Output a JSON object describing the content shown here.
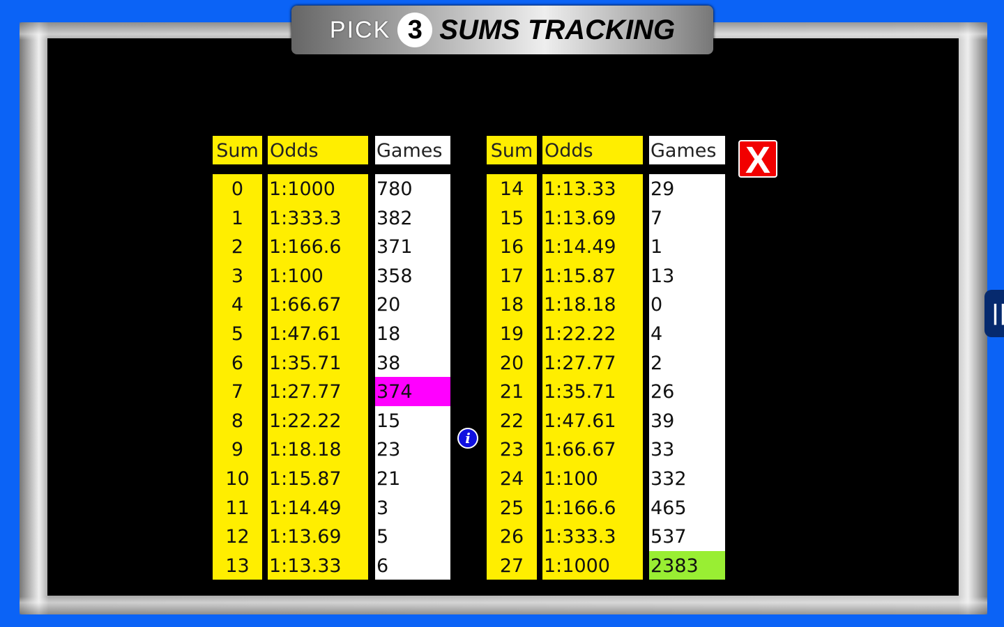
{
  "title": {
    "pick": "PICK",
    "number": "3",
    "rest": "SUMS TRACKING"
  },
  "headers": {
    "sum": "Sum",
    "odds": "Odds",
    "games": "Games"
  },
  "close_label": "X",
  "info_label": "i",
  "handle_label": "||",
  "colors": {
    "background": "#0b63f6",
    "cell": "#ffee00",
    "highlight_magenta": "#ff00ff",
    "highlight_green": "#99ee33"
  },
  "left_table": [
    {
      "sum": "0",
      "odds": "1:1000",
      "games": "780"
    },
    {
      "sum": "1",
      "odds": "1:333.3",
      "games": "382"
    },
    {
      "sum": "2",
      "odds": "1:166.6",
      "games": "371"
    },
    {
      "sum": "3",
      "odds": "1:100",
      "games": "358"
    },
    {
      "sum": "4",
      "odds": "1:66.67",
      "games": "20"
    },
    {
      "sum": "5",
      "odds": "1:47.61",
      "games": "18"
    },
    {
      "sum": "6",
      "odds": "1:35.71",
      "games": "38"
    },
    {
      "sum": "7",
      "odds": "1:27.77",
      "games": "374",
      "highlight": "magenta"
    },
    {
      "sum": "8",
      "odds": "1:22.22",
      "games": "15"
    },
    {
      "sum": "9",
      "odds": "1:18.18",
      "games": "23"
    },
    {
      "sum": "10",
      "odds": "1:15.87",
      "games": "21"
    },
    {
      "sum": "11",
      "odds": "1:14.49",
      "games": "3"
    },
    {
      "sum": "12",
      "odds": "1:13.69",
      "games": "5"
    },
    {
      "sum": "13",
      "odds": "1:13.33",
      "games": "6"
    }
  ],
  "right_table": [
    {
      "sum": "14",
      "odds": "1:13.33",
      "games": "29"
    },
    {
      "sum": "15",
      "odds": "1:13.69",
      "games": "7"
    },
    {
      "sum": "16",
      "odds": "1:14.49",
      "games": "1"
    },
    {
      "sum": "17",
      "odds": "1:15.87",
      "games": "13"
    },
    {
      "sum": "18",
      "odds": "1:18.18",
      "games": "0"
    },
    {
      "sum": "19",
      "odds": "1:22.22",
      "games": "4"
    },
    {
      "sum": "20",
      "odds": "1:27.77",
      "games": "2"
    },
    {
      "sum": "21",
      "odds": "1:35.71",
      "games": "26"
    },
    {
      "sum": "22",
      "odds": "1:47.61",
      "games": "39"
    },
    {
      "sum": "23",
      "odds": "1:66.67",
      "games": "33"
    },
    {
      "sum": "24",
      "odds": "1:100",
      "games": "332"
    },
    {
      "sum": "25",
      "odds": "1:166.6",
      "games": "465"
    },
    {
      "sum": "26",
      "odds": "1:333.3",
      "games": "537"
    },
    {
      "sum": "27",
      "odds": "1:1000",
      "games": "2383",
      "highlight": "green"
    }
  ]
}
